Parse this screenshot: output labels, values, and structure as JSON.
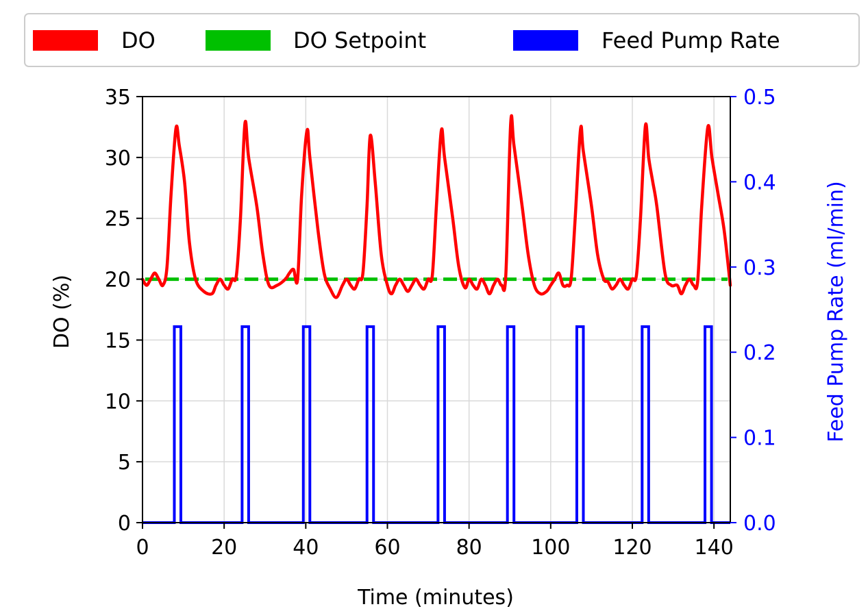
{
  "colors": {
    "do": "#ff0000",
    "setpoint": "#00c000",
    "feed": "#0000ff",
    "right_axis": "#0000ff",
    "grid": "#d9d9d9"
  },
  "chart_data": {
    "type": "line",
    "title": "",
    "xlabel": "Time (minutes)",
    "ylabel": "DO (%)",
    "ylabel_right": "Feed Pump Rate (ml/min)",
    "xlim": [
      0,
      144
    ],
    "ylim": [
      0,
      35
    ],
    "ylim_right": [
      0,
      0.5
    ],
    "xticks": [
      0,
      20,
      40,
      60,
      80,
      100,
      120,
      140
    ],
    "xtick_labels": [
      "0",
      "20",
      "40",
      "60",
      "80",
      "100",
      "120",
      "140"
    ],
    "yticks": [
      0,
      5,
      10,
      15,
      20,
      25,
      30,
      35
    ],
    "ytick_labels": [
      "0",
      "5",
      "10",
      "15",
      "20",
      "25",
      "30",
      "35"
    ],
    "yticks_right": [
      0.0,
      0.1,
      0.2,
      0.3,
      0.4,
      0.5
    ],
    "ytick_right_labels": [
      "0.0",
      "0.1",
      "0.2",
      "0.3",
      "0.4",
      "0.5"
    ],
    "grid": true,
    "legend": {
      "position": "top, outside plot",
      "entries": [
        "DO",
        "DO Setpoint",
        "Feed Pump Rate"
      ]
    },
    "series": [
      {
        "name": "DO",
        "axis": "left",
        "style": "solid",
        "x": [
          0,
          1,
          2,
          3,
          4,
          5,
          6,
          7,
          8.2,
          9,
          10.3,
          11.5,
          13,
          15,
          17,
          18,
          19,
          20,
          21,
          22,
          23,
          24,
          25.1,
          26,
          28,
          29.5,
          31,
          33,
          35,
          36,
          37,
          38,
          39,
          40.3,
          41,
          43,
          44.5,
          46,
          47.5,
          49,
          50,
          51,
          52,
          53,
          54,
          55,
          55.8,
          57,
          58.5,
          60,
          61,
          62,
          63,
          64,
          65,
          66,
          67,
          68,
          69,
          70,
          71,
          72,
          73.2,
          74,
          76,
          77.5,
          79,
          80,
          81,
          82,
          83,
          84,
          85,
          86,
          87,
          88,
          89,
          90.2,
          91,
          93,
          94.5,
          96,
          97.5,
          99,
          100,
          101,
          102,
          103,
          104,
          105,
          106,
          107.3,
          108,
          110,
          111.5,
          113,
          114,
          115,
          116,
          117,
          118,
          119,
          120,
          121,
          122,
          123.2,
          124,
          125,
          126,
          128,
          129.5,
          131,
          132,
          133,
          134,
          135,
          136,
          137,
          138.5,
          139.5,
          141,
          142.5,
          144
        ],
        "y": [
          20,
          19.5,
          20,
          20.5,
          20,
          19.5,
          21,
          27,
          32.4,
          31,
          28,
          23,
          20,
          19,
          18.8,
          19.5,
          20,
          19.5,
          19.2,
          20,
          20.3,
          25,
          32.8,
          30,
          26,
          22,
          19.5,
          19.5,
          20,
          20.5,
          20.8,
          20,
          27,
          32.2,
          30,
          24,
          20.5,
          19.2,
          18.5,
          19.5,
          20,
          19.5,
          19.2,
          20,
          20.5,
          26,
          31.8,
          28,
          22,
          19.5,
          18.8,
          19.5,
          20,
          19.5,
          19,
          19.5,
          20,
          19.5,
          19.2,
          20,
          20.3,
          26,
          32.2,
          30,
          25,
          21,
          19.3,
          20,
          19.5,
          19.2,
          20,
          19.5,
          18.8,
          19.5,
          20,
          19.5,
          20.3,
          32.8,
          31,
          26,
          22,
          19.5,
          18.8,
          19,
          19.5,
          20,
          20.5,
          19.5,
          19.5,
          20,
          25,
          32.3,
          30.5,
          26,
          22,
          20,
          19.8,
          19.2,
          19.5,
          20,
          19.5,
          19.2,
          20,
          20.3,
          25,
          32.6,
          30,
          28,
          26,
          20.5,
          19.5,
          19.5,
          18.8,
          19.5,
          20,
          19.5,
          19.8,
          26,
          32.5,
          30,
          27,
          24,
          19.5
        ]
      },
      {
        "name": "DO Setpoint",
        "axis": "left",
        "style": "dashed",
        "x": [
          0,
          144
        ],
        "y": [
          20,
          20
        ]
      },
      {
        "name": "Feed Pump Rate",
        "axis": "right",
        "style": "solid",
        "pulses": [
          {
            "start": 7.8,
            "end": 9.4,
            "value": 0.23
          },
          {
            "start": 24.4,
            "end": 26.0,
            "value": 0.23
          },
          {
            "start": 39.4,
            "end": 41.0,
            "value": 0.23
          },
          {
            "start": 55.0,
            "end": 56.6,
            "value": 0.23
          },
          {
            "start": 72.4,
            "end": 74.0,
            "value": 0.23
          },
          {
            "start": 89.4,
            "end": 91.0,
            "value": 0.23
          },
          {
            "start": 106.4,
            "end": 108.0,
            "value": 0.23
          },
          {
            "start": 122.4,
            "end": 124.0,
            "value": 0.23
          },
          {
            "start": 137.8,
            "end": 139.4,
            "value": 0.23
          }
        ]
      }
    ]
  }
}
